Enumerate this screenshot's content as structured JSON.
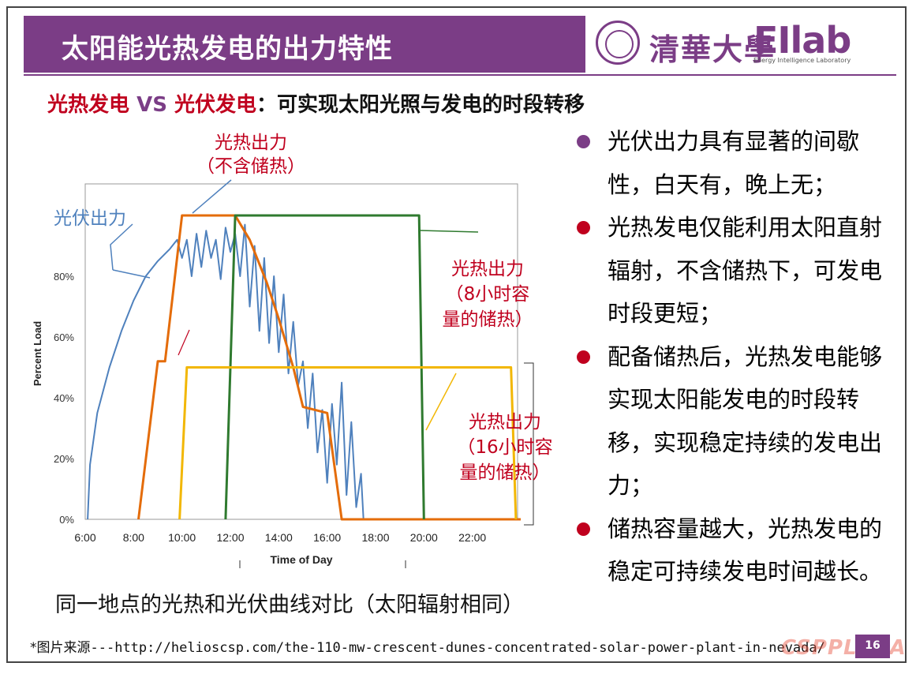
{
  "header": {
    "title": "太阳能光热发电的出力特性",
    "university": "清華大學",
    "lab_logo": "EIlab",
    "lab_sub": "Energy Intelligence Laboratory"
  },
  "subtitle": {
    "part1": "光热发电",
    "part2": " VS ",
    "part3": "光伏发电",
    "part4": "：可实现太阳光照与发电的时段转移"
  },
  "bullets": [
    {
      "text": "光伏出力具有显著的间歇性，白天有，晚上无；",
      "color": "#7b3d86"
    },
    {
      "text": "光热发电仅能利用太阳直射辐射，不含储热下，可发电时段更短；",
      "color": "#c0001e"
    },
    {
      "text": "配备储热后，光热发电能够实现太阳能发电的时段转移，实现稳定持续的发电出力；",
      "color": "#c0001e"
    },
    {
      "text": "储热容量越大，光热发电的稳定可持续发电时间越长。",
      "color": "#c0001e"
    }
  ],
  "caption": "同一地点的光热和光伏曲线对比（太阳辐射相同）",
  "source": {
    "label": "*图片来源",
    "url": "---http://helioscsp.com/the-110-mw-crescent-dunes-concentrated-solar-power-plant-in-nevada/"
  },
  "page_number": "16",
  "watermark": "CSPPLAZA",
  "annotations": {
    "pv": "光伏出力",
    "csp_none_l1": "光热出力",
    "csp_none_l2": "（不含储热）",
    "csp_8h_l1": "光热出力",
    "csp_8h_l2": "（8小时容",
    "csp_8h_l3": "量的储热）",
    "csp_16h_l1": "光热出力",
    "csp_16h_l2": "（16小时容",
    "csp_16h_l3": "量的储热）"
  },
  "chart_data": {
    "type": "line",
    "xlabel": "Time of Day",
    "ylabel": "Percent Load",
    "x_ticks": [
      "6:00",
      "8:00",
      "10:00",
      "12:00",
      "14:00",
      "16:00",
      "18:00",
      "20:00",
      "22:00"
    ],
    "y_ticks": [
      "0%",
      "20%",
      "40%",
      "60%",
      "80%"
    ],
    "xlim": [
      6,
      24
    ],
    "ylim": [
      0,
      100
    ],
    "series": [
      {
        "key": "pv",
        "color": "#4f81bd",
        "points": [
          [
            6.1,
            0
          ],
          [
            6.2,
            18
          ],
          [
            6.5,
            35
          ],
          [
            7,
            50
          ],
          [
            7.5,
            62
          ],
          [
            8,
            72
          ],
          [
            8.5,
            80
          ],
          [
            9,
            85
          ],
          [
            9.5,
            89
          ],
          [
            9.8,
            92
          ],
          [
            10,
            86
          ],
          [
            10.2,
            92
          ],
          [
            10.4,
            80
          ],
          [
            10.6,
            94
          ],
          [
            10.8,
            83
          ],
          [
            11,
            95
          ],
          [
            11.2,
            86
          ],
          [
            11.4,
            92
          ],
          [
            11.6,
            79
          ],
          [
            11.8,
            96
          ],
          [
            12,
            88
          ],
          [
            12.2,
            94
          ],
          [
            12.4,
            80
          ],
          [
            12.6,
            97
          ],
          [
            12.8,
            70
          ],
          [
            13,
            90
          ],
          [
            13.2,
            62
          ],
          [
            13.4,
            86
          ],
          [
            13.6,
            58
          ],
          [
            13.8,
            80
          ],
          [
            14,
            55
          ],
          [
            14.2,
            74
          ],
          [
            14.4,
            48
          ],
          [
            14.6,
            65
          ],
          [
            14.8,
            44
          ],
          [
            15,
            52
          ],
          [
            15.2,
            30
          ],
          [
            15.4,
            48
          ],
          [
            15.6,
            22
          ],
          [
            15.8,
            36
          ],
          [
            16,
            12
          ],
          [
            16.2,
            38
          ],
          [
            16.4,
            18
          ],
          [
            16.6,
            45
          ],
          [
            16.8,
            8
          ],
          [
            17,
            32
          ],
          [
            17.2,
            4
          ],
          [
            17.4,
            15
          ],
          [
            17.5,
            0
          ],
          [
            24,
            0
          ]
        ]
      },
      {
        "key": "csp_none",
        "color": "#e46c0a",
        "points": [
          [
            8.2,
            0
          ],
          [
            9,
            52
          ],
          [
            9.3,
            52
          ],
          [
            10,
            100
          ],
          [
            11.5,
            100
          ],
          [
            12.2,
            100
          ],
          [
            12.8,
            92
          ],
          [
            13.5,
            78
          ],
          [
            14,
            66
          ],
          [
            14.6,
            50
          ],
          [
            15,
            37
          ],
          [
            16,
            35
          ],
          [
            16.6,
            0
          ],
          [
            24,
            0
          ]
        ]
      },
      {
        "key": "csp_8h",
        "color": "#2f7a2f",
        "points": [
          [
            11.8,
            0
          ],
          [
            12.2,
            100
          ],
          [
            19.8,
            100
          ],
          [
            20,
            0
          ]
        ]
      },
      {
        "key": "csp_16h",
        "color": "#f2b705",
        "points": [
          [
            9.9,
            0
          ],
          [
            10.2,
            50
          ],
          [
            23.6,
            50
          ],
          [
            23.8,
            0
          ]
        ]
      }
    ]
  }
}
